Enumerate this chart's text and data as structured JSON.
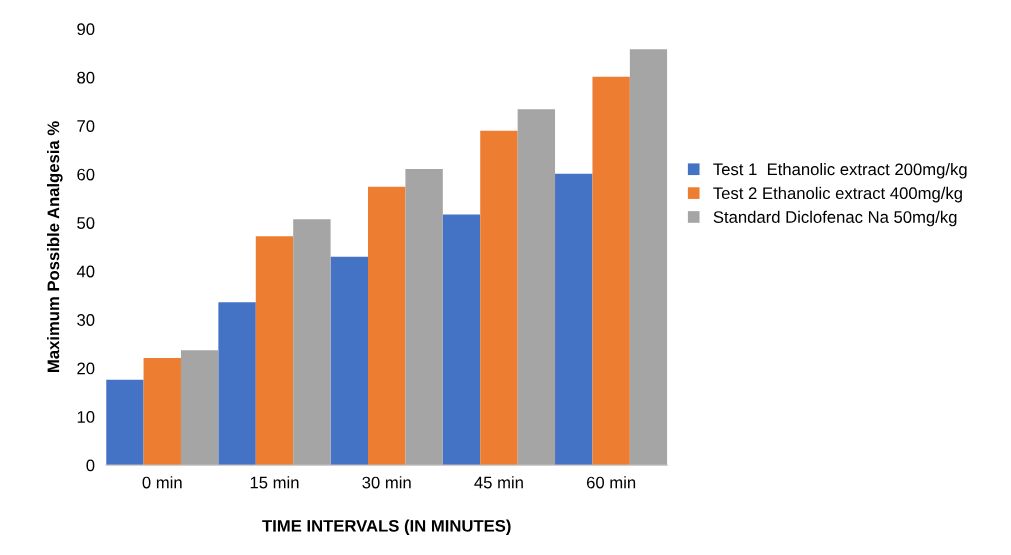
{
  "chart_data": {
    "type": "bar",
    "xlabel": "TIME INTERVALS (IN MINUTES)",
    "ylabel": "Maximum Possible Analgesia %",
    "categories": [
      "0 min",
      "15 min",
      "30 min",
      "45 min",
      "60 min"
    ],
    "series": [
      {
        "name": "Test 1  Ethanolic extract 200mg/kg",
        "color": "#4472c4",
        "values": [
          17.6,
          33.6,
          43.0,
          51.7,
          60.1
        ]
      },
      {
        "name": "Test 2 Ethanolic extract 400mg/kg",
        "color": "#ed7d31",
        "values": [
          22.1,
          47.2,
          57.4,
          69.0,
          80.1
        ]
      },
      {
        "name": "Standard Diclofenac Na 50mg/kg",
        "color": "#a5a5a5",
        "values": [
          23.7,
          50.7,
          61.1,
          73.4,
          85.8
        ]
      }
    ],
    "ylim": [
      0,
      90
    ],
    "yticks": [
      0,
      10,
      20,
      30,
      40,
      50,
      60,
      70,
      80,
      90
    ],
    "grid": false,
    "legend": "right"
  }
}
